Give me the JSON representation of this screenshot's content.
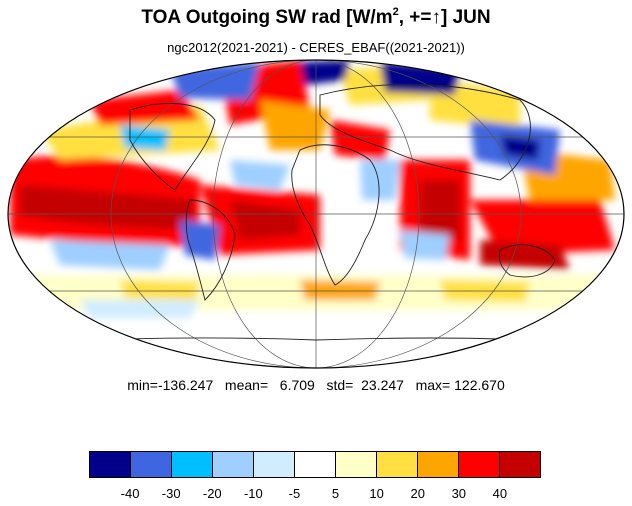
{
  "title": {
    "text_main": "TOA Outgoing SW rad [W/m",
    "superscript": "2",
    "text_tail": ", +=",
    "arrow": "↑",
    "text_end": "] JUN"
  },
  "subtitle": "ngc2012(2021-2021) - CERES_EBAF((2021-2021))",
  "stats": "min=-136.247   mean=   6.709   std=  23.247   max= 122.670",
  "colorbar": {
    "colors": [
      "#00008b",
      "#3f66e0",
      "#00bfff",
      "#9fcfff",
      "#d0ecff",
      "#ffffff",
      "#ffffc8",
      "#ffe040",
      "#ffa500",
      "#ff0000",
      "#c40000"
    ],
    "labels": [
      "-40",
      "-30",
      "-20",
      "-10",
      "-5",
      "5",
      "10",
      "20",
      "30",
      "40"
    ]
  },
  "map": {
    "projection": "mollweide",
    "field": "TOA outgoing shortwave radiation difference"
  }
}
